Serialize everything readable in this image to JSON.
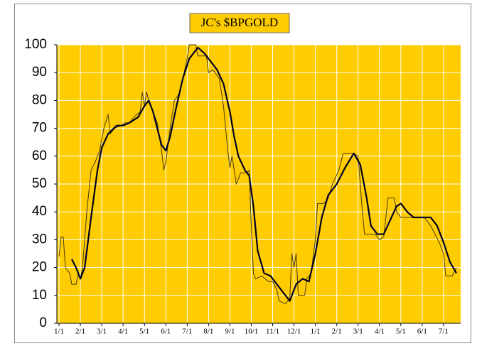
{
  "chart_data": {
    "type": "line",
    "title": "JC's $BPGOLD",
    "xlim": [
      -0.1,
      18.8
    ],
    "ylim": [
      0,
      100
    ],
    "yticks": [
      0,
      10,
      20,
      30,
      40,
      50,
      60,
      70,
      80,
      90,
      100
    ],
    "xticks": [
      {
        "value": 0,
        "label": "1/1"
      },
      {
        "value": 1,
        "label": "2/1"
      },
      {
        "value": 2,
        "label": "3/1"
      },
      {
        "value": 3,
        "label": "4/1"
      },
      {
        "value": 4,
        "label": "5/1"
      },
      {
        "value": 5,
        "label": "6/1"
      },
      {
        "value": 6,
        "label": "7/1"
      },
      {
        "value": 7,
        "label": "8/1"
      },
      {
        "value": 8,
        "label": "9/1"
      },
      {
        "value": 9,
        "label": "10/1"
      },
      {
        "value": 10,
        "label": "11/1"
      },
      {
        "value": 11,
        "label": "12/1"
      },
      {
        "value": 12,
        "label": "1/1"
      },
      {
        "value": 13,
        "label": "2/1"
      },
      {
        "value": 14,
        "label": "3/1"
      },
      {
        "value": 15,
        "label": "4/1"
      },
      {
        "value": 16,
        "label": "5/1"
      },
      {
        "value": 17,
        "label": "6/1"
      },
      {
        "value": 18,
        "label": "7/1"
      }
    ],
    "grid": true,
    "background": "#ffcc00",
    "series": [
      {
        "color": "#4a3a10",
        "width": 1,
        "x": [
          0,
          0.1,
          0.2,
          0.3,
          0.5,
          0.6,
          0.8,
          0.9,
          1.0,
          1.1,
          1.3,
          1.5,
          1.7,
          1.9,
          2.1,
          2.3,
          2.4,
          2.6,
          2.9,
          3.1,
          3.3,
          3.5,
          3.8,
          3.9,
          4.0,
          4.1,
          4.2,
          4.4,
          4.6,
          4.8,
          4.9,
          5.0,
          5.2,
          5.4,
          5.6,
          5.8,
          6.0,
          6.1,
          6.4,
          6.5,
          6.9,
          7.0,
          7.2,
          7.5,
          7.7,
          7.9,
          8.0,
          8.1,
          8.3,
          8.5,
          8.8,
          8.9,
          9.0,
          9.1,
          9.2,
          9.5,
          9.8,
          10.0,
          10.2,
          10.3,
          10.6,
          10.8,
          10.9,
          11.0,
          11.1,
          11.2,
          11.5,
          11.6,
          11.8,
          12.0,
          12.1,
          12.4,
          12.6,
          12.8,
          13.1,
          13.3,
          13.8,
          14.0,
          14.2,
          14.3,
          14.8,
          15.0,
          15.2,
          15.4,
          15.7,
          15.8,
          16.0,
          16.5,
          17.1,
          17.4,
          17.6,
          17.8,
          18.0,
          18.1,
          18.4,
          18.6
        ],
        "values": [
          24,
          31,
          31,
          20,
          18,
          14,
          14,
          18,
          16,
          20,
          40,
          55,
          58,
          62,
          70,
          75,
          68,
          70,
          71,
          72,
          72,
          74,
          76,
          83,
          78,
          83,
          80,
          76,
          72,
          62,
          55,
          58,
          70,
          80,
          82,
          88,
          95,
          100,
          100,
          96,
          96,
          90,
          91,
          88,
          78,
          62,
          56,
          60,
          50,
          54,
          54,
          55,
          35,
          18,
          16,
          17,
          15,
          15,
          12,
          8,
          7,
          9,
          25,
          20,
          25,
          10,
          10,
          16,
          18,
          30,
          43,
          43,
          45,
          50,
          55,
          61,
          61,
          60,
          40,
          32,
          32,
          30,
          31,
          45,
          45,
          40,
          38,
          38,
          38,
          35,
          32,
          29,
          25,
          17,
          17,
          20
        ]
      },
      {
        "color": "#000022",
        "width": 2.2,
        "x": [
          0.6,
          0.8,
          1.0,
          1.2,
          1.5,
          1.8,
          2.0,
          2.3,
          2.7,
          3.0,
          3.3,
          3.7,
          4.0,
          4.2,
          4.4,
          4.6,
          4.8,
          5.0,
          5.2,
          5.5,
          5.8,
          6.1,
          6.4,
          6.5,
          6.8,
          7.1,
          7.4,
          7.7,
          8.0,
          8.2,
          8.4,
          8.7,
          8.9,
          9.1,
          9.3,
          9.6,
          9.9,
          10.2,
          10.5,
          10.8,
          11.1,
          11.4,
          11.7,
          12.0,
          12.3,
          12.6,
          13.0,
          13.4,
          13.8,
          14.1,
          14.4,
          14.6,
          14.9,
          15.2,
          15.5,
          15.8,
          16.0,
          16.3,
          16.6,
          17.0,
          17.4,
          17.7,
          18.0,
          18.3,
          18.6
        ],
        "values": [
          23,
          20,
          16,
          20,
          38,
          55,
          63,
          68,
          71,
          71,
          72,
          74,
          78,
          80,
          76,
          70,
          64,
          62,
          67,
          78,
          88,
          95,
          98,
          99,
          97,
          94,
          91,
          86,
          76,
          67,
          60,
          55,
          53,
          42,
          26,
          18,
          17,
          14,
          11,
          8,
          14,
          16,
          15,
          25,
          38,
          46,
          50,
          56,
          61,
          57,
          45,
          35,
          32,
          32,
          37,
          42,
          43,
          40,
          38,
          38,
          38,
          35,
          29,
          22,
          18
        ]
      }
    ]
  }
}
